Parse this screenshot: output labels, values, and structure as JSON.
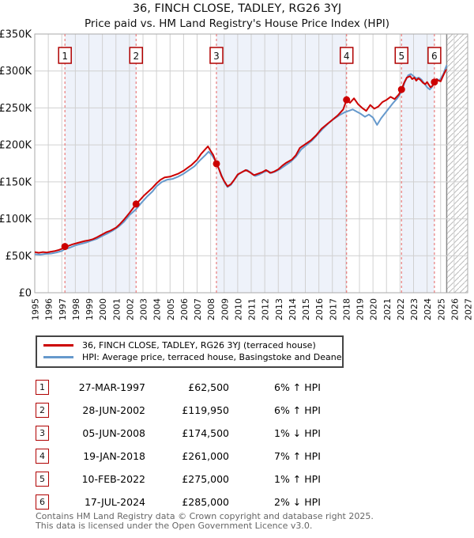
{
  "chart_data": {
    "type": "line",
    "title": "36, FINCH CLOSE, TADLEY, RG26 3YJ",
    "subtitle": "Price paid vs. HM Land Registry's House Price Index (HPI)",
    "x_axis": {
      "min": 1995,
      "max": 2027,
      "tick_labels": [
        1995,
        1996,
        1997,
        1998,
        1999,
        2000,
        2001,
        2002,
        2003,
        2004,
        2005,
        2006,
        2007,
        2008,
        2009,
        2010,
        2011,
        2012,
        2013,
        2014,
        2015,
        2016,
        2017,
        2018,
        2019,
        2020,
        2021,
        2022,
        2023,
        2024,
        2025,
        2026,
        2027
      ]
    },
    "y_axis": {
      "min": 0,
      "max": 350000,
      "tick_step": 50000,
      "tick_labels": [
        "£0",
        "£50K",
        "£100K",
        "£150K",
        "£200K",
        "£250K",
        "£300K",
        "£350K"
      ]
    },
    "future_region_start": 2025.45,
    "shaded_bands": [
      [
        1997.23,
        2002.49
      ],
      [
        2008.43,
        2018.05
      ],
      [
        2022.11,
        2024.54
      ]
    ],
    "colors": {
      "property_line": "#cc0000",
      "hpi_line": "#6699cc",
      "band": "#eef2fa",
      "sale_dash": "#e87c7c",
      "grid": "#d0d0d0",
      "hatch": "#bbbbbb",
      "box_border": "#b00000"
    },
    "series": [
      {
        "name": "36, FINCH CLOSE, TADLEY, RG26 3YJ (terraced house)",
        "color": "#cc0000",
        "points": [
          [
            1995.0,
            55
          ],
          [
            1995.3,
            54
          ],
          [
            1995.6,
            55
          ],
          [
            1995.9,
            54.5
          ],
          [
            1996.2,
            55.5
          ],
          [
            1996.5,
            56.5
          ],
          [
            1996.8,
            58
          ],
          [
            1997.0,
            59.5
          ],
          [
            1997.23,
            62.5
          ],
          [
            1997.5,
            63.5
          ],
          [
            1997.8,
            65.5
          ],
          [
            1998.1,
            67
          ],
          [
            1998.4,
            68.5
          ],
          [
            1998.7,
            70
          ],
          [
            1999.0,
            71
          ],
          [
            1999.3,
            72.5
          ],
          [
            1999.6,
            75
          ],
          [
            2000.0,
            79
          ],
          [
            2000.3,
            82
          ],
          [
            2000.6,
            84
          ],
          [
            2001.0,
            88
          ],
          [
            2001.3,
            93
          ],
          [
            2001.6,
            99
          ],
          [
            2002.0,
            108
          ],
          [
            2002.25,
            114
          ],
          [
            2002.49,
            119.95
          ],
          [
            2002.8,
            126
          ],
          [
            2003.1,
            132
          ],
          [
            2003.4,
            137
          ],
          [
            2003.7,
            142
          ],
          [
            2004.0,
            148
          ],
          [
            2004.3,
            153
          ],
          [
            2004.6,
            156
          ],
          [
            2005.0,
            157
          ],
          [
            2005.3,
            159
          ],
          [
            2005.6,
            161
          ],
          [
            2006.0,
            165
          ],
          [
            2006.3,
            169
          ],
          [
            2006.6,
            173
          ],
          [
            2007.0,
            180
          ],
          [
            2007.3,
            188
          ],
          [
            2007.6,
            194
          ],
          [
            2007.8,
            198
          ],
          [
            2008.0,
            192
          ],
          [
            2008.2,
            186
          ],
          [
            2008.43,
            174.5
          ],
          [
            2008.6,
            168
          ],
          [
            2008.8,
            158
          ],
          [
            2009.0,
            151
          ],
          [
            2009.25,
            144
          ],
          [
            2009.5,
            147
          ],
          [
            2009.75,
            153
          ],
          [
            2010.0,
            160
          ],
          [
            2010.3,
            163
          ],
          [
            2010.6,
            166
          ],
          [
            2010.9,
            163
          ],
          [
            2011.2,
            159
          ],
          [
            2011.5,
            161
          ],
          [
            2011.8,
            163
          ],
          [
            2012.1,
            166
          ],
          [
            2012.4,
            162
          ],
          [
            2012.7,
            164
          ],
          [
            2013.0,
            167
          ],
          [
            2013.3,
            172
          ],
          [
            2013.6,
            176
          ],
          [
            2014.0,
            180
          ],
          [
            2014.3,
            186
          ],
          [
            2014.6,
            196
          ],
          [
            2015.0,
            201
          ],
          [
            2015.4,
            206
          ],
          [
            2015.8,
            213
          ],
          [
            2016.2,
            222
          ],
          [
            2016.6,
            228
          ],
          [
            2017.0,
            234
          ],
          [
            2017.4,
            240
          ],
          [
            2017.8,
            248
          ],
          [
            2018.05,
            261
          ],
          [
            2018.3,
            257
          ],
          [
            2018.6,
            263
          ],
          [
            2018.9,
            255
          ],
          [
            2019.2,
            250
          ],
          [
            2019.5,
            246
          ],
          [
            2019.8,
            254
          ],
          [
            2020.1,
            249
          ],
          [
            2020.4,
            252
          ],
          [
            2020.7,
            258
          ],
          [
            2021.0,
            261
          ],
          [
            2021.3,
            265
          ],
          [
            2021.6,
            262
          ],
          [
            2021.9,
            268
          ],
          [
            2022.11,
            275
          ],
          [
            2022.3,
            284
          ],
          [
            2022.5,
            291
          ],
          [
            2022.75,
            293
          ],
          [
            2022.9,
            289
          ],
          [
            2023.05,
            291
          ],
          [
            2023.2,
            287
          ],
          [
            2023.35,
            290
          ],
          [
            2023.5,
            288
          ],
          [
            2023.7,
            284
          ],
          [
            2023.86,
            282
          ],
          [
            2024.0,
            285
          ],
          [
            2024.25,
            278
          ],
          [
            2024.4,
            280
          ],
          [
            2024.54,
            285
          ],
          [
            2024.7,
            289
          ],
          [
            2024.85,
            287
          ],
          [
            2025.0,
            286
          ],
          [
            2025.15,
            292
          ],
          [
            2025.3,
            298
          ],
          [
            2025.42,
            302
          ]
        ]
      },
      {
        "name": "HPI: Average price, terraced house, Basingstoke and Deane",
        "color": "#6699cc",
        "points": [
          [
            1995.0,
            52
          ],
          [
            1995.4,
            51.5
          ],
          [
            1995.8,
            52.5
          ],
          [
            1996.2,
            53
          ],
          [
            1996.6,
            54.5
          ],
          [
            1997.0,
            56.5
          ],
          [
            1997.23,
            59
          ],
          [
            1997.6,
            61
          ],
          [
            1998.0,
            64
          ],
          [
            1998.4,
            66
          ],
          [
            1998.8,
            68
          ],
          [
            1999.2,
            70.5
          ],
          [
            1999.6,
            73
          ],
          [
            2000.0,
            77
          ],
          [
            2000.4,
            80.5
          ],
          [
            2000.8,
            84.5
          ],
          [
            2001.2,
            89.5
          ],
          [
            2001.6,
            96
          ],
          [
            2002.0,
            105
          ],
          [
            2002.49,
            113
          ],
          [
            2002.9,
            122
          ],
          [
            2003.3,
            130
          ],
          [
            2003.7,
            137
          ],
          [
            2004.0,
            144
          ],
          [
            2004.4,
            150
          ],
          [
            2004.8,
            153
          ],
          [
            2005.2,
            154
          ],
          [
            2005.6,
            157
          ],
          [
            2006.0,
            161
          ],
          [
            2006.4,
            166
          ],
          [
            2006.8,
            171
          ],
          [
            2007.2,
            179
          ],
          [
            2007.6,
            186
          ],
          [
            2007.85,
            191
          ],
          [
            2008.1,
            186
          ],
          [
            2008.43,
            176
          ],
          [
            2008.7,
            164
          ],
          [
            2009.0,
            150
          ],
          [
            2009.25,
            143
          ],
          [
            2009.5,
            146
          ],
          [
            2009.8,
            154
          ],
          [
            2010.1,
            161
          ],
          [
            2010.4,
            164
          ],
          [
            2010.7,
            166
          ],
          [
            2011.0,
            162
          ],
          [
            2011.3,
            158
          ],
          [
            2011.6,
            160
          ],
          [
            2011.9,
            163
          ],
          [
            2012.2,
            165
          ],
          [
            2012.5,
            162
          ],
          [
            2012.8,
            164
          ],
          [
            2013.1,
            167
          ],
          [
            2013.5,
            172
          ],
          [
            2013.9,
            177
          ],
          [
            2014.3,
            184
          ],
          [
            2014.7,
            194
          ],
          [
            2015.1,
            200
          ],
          [
            2015.5,
            206
          ],
          [
            2015.9,
            214
          ],
          [
            2016.3,
            222
          ],
          [
            2016.7,
            229
          ],
          [
            2017.1,
            235
          ],
          [
            2017.5,
            240
          ],
          [
            2017.9,
            244
          ],
          [
            2018.2,
            246
          ],
          [
            2018.5,
            248
          ],
          [
            2018.8,
            245
          ],
          [
            2019.1,
            242
          ],
          [
            2019.4,
            238
          ],
          [
            2019.7,
            241
          ],
          [
            2020.0,
            237
          ],
          [
            2020.3,
            227
          ],
          [
            2020.6,
            236
          ],
          [
            2020.9,
            243
          ],
          [
            2021.2,
            250
          ],
          [
            2021.5,
            257
          ],
          [
            2021.8,
            263
          ],
          [
            2022.11,
            272
          ],
          [
            2022.35,
            285
          ],
          [
            2022.6,
            294
          ],
          [
            2022.8,
            296
          ],
          [
            2023.0,
            293
          ],
          [
            2023.2,
            290
          ],
          [
            2023.4,
            291
          ],
          [
            2023.6,
            288
          ],
          [
            2023.8,
            283
          ],
          [
            2024.0,
            278
          ],
          [
            2024.2,
            275
          ],
          [
            2024.35,
            278
          ],
          [
            2024.54,
            287
          ],
          [
            2024.75,
            289
          ],
          [
            2024.9,
            287
          ],
          [
            2025.05,
            291
          ],
          [
            2025.2,
            296
          ],
          [
            2025.35,
            303
          ],
          [
            2025.45,
            308
          ]
        ]
      }
    ],
    "sales": [
      {
        "label": "1",
        "year": 1997.23,
        "price_k": 62.5
      },
      {
        "label": "2",
        "year": 2002.49,
        "price_k": 119.95
      },
      {
        "label": "3",
        "year": 2008.43,
        "price_k": 174.5
      },
      {
        "label": "4",
        "year": 2018.05,
        "price_k": 261
      },
      {
        "label": "5",
        "year": 2022.11,
        "price_k": 275
      },
      {
        "label": "6",
        "year": 2024.54,
        "price_k": 285
      }
    ]
  },
  "legend": {
    "entries": [
      {
        "label": "36, FINCH CLOSE, TADLEY, RG26 3YJ (terraced house)",
        "color": "#cc0000"
      },
      {
        "label": "HPI: Average price, terraced house, Basingstoke and Deane",
        "color": "#6699cc"
      }
    ]
  },
  "table": {
    "rows": [
      {
        "num": "1",
        "date": "27-MAR-1997",
        "price": "£62,500",
        "vs_hpi": "6% ↑ HPI"
      },
      {
        "num": "2",
        "date": "28-JUN-2002",
        "price": "£119,950",
        "vs_hpi": "6% ↑ HPI"
      },
      {
        "num": "3",
        "date": "05-JUN-2008",
        "price": "£174,500",
        "vs_hpi": "1% ↓ HPI"
      },
      {
        "num": "4",
        "date": "19-JAN-2018",
        "price": "£261,000",
        "vs_hpi": "7% ↑ HPI"
      },
      {
        "num": "5",
        "date": "10-FEB-2022",
        "price": "£275,000",
        "vs_hpi": "1% ↑ HPI"
      },
      {
        "num": "6",
        "date": "17-JUL-2024",
        "price": "£285,000",
        "vs_hpi": "2% ↓ HPI"
      }
    ]
  },
  "footer": {
    "line1": "Contains HM Land Registry data © Crown copyright and database right 2025.",
    "line2": "This data is licensed under the Open Government Licence v3.0."
  }
}
